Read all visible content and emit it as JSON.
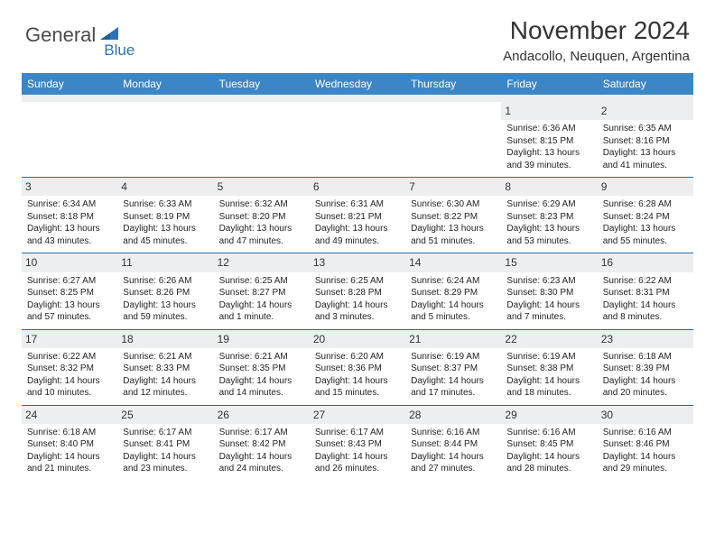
{
  "logo": {
    "text1": "General",
    "text2": "Blue"
  },
  "title": "November 2024",
  "location": "Andacollo, Neuquen, Argentina",
  "colors": {
    "header_bg": "#3b86c6",
    "header_text": "#ffffff",
    "daynum_bg": "#eceef0",
    "rule": "#2a6aa8",
    "logo_gray": "#4a4a4a",
    "logo_blue": "#2a73b8"
  },
  "dow": [
    "Sunday",
    "Monday",
    "Tuesday",
    "Wednesday",
    "Thursday",
    "Friday",
    "Saturday"
  ],
  "weeks": [
    [
      {
        "n": "",
        "sr": "",
        "ss": "",
        "dl": ""
      },
      {
        "n": "",
        "sr": "",
        "ss": "",
        "dl": ""
      },
      {
        "n": "",
        "sr": "",
        "ss": "",
        "dl": ""
      },
      {
        "n": "",
        "sr": "",
        "ss": "",
        "dl": ""
      },
      {
        "n": "",
        "sr": "",
        "ss": "",
        "dl": ""
      },
      {
        "n": "1",
        "sr": "Sunrise: 6:36 AM",
        "ss": "Sunset: 8:15 PM",
        "dl": "Daylight: 13 hours and 39 minutes."
      },
      {
        "n": "2",
        "sr": "Sunrise: 6:35 AM",
        "ss": "Sunset: 8:16 PM",
        "dl": "Daylight: 13 hours and 41 minutes."
      }
    ],
    [
      {
        "n": "3",
        "sr": "Sunrise: 6:34 AM",
        "ss": "Sunset: 8:18 PM",
        "dl": "Daylight: 13 hours and 43 minutes."
      },
      {
        "n": "4",
        "sr": "Sunrise: 6:33 AM",
        "ss": "Sunset: 8:19 PM",
        "dl": "Daylight: 13 hours and 45 minutes."
      },
      {
        "n": "5",
        "sr": "Sunrise: 6:32 AM",
        "ss": "Sunset: 8:20 PM",
        "dl": "Daylight: 13 hours and 47 minutes."
      },
      {
        "n": "6",
        "sr": "Sunrise: 6:31 AM",
        "ss": "Sunset: 8:21 PM",
        "dl": "Daylight: 13 hours and 49 minutes."
      },
      {
        "n": "7",
        "sr": "Sunrise: 6:30 AM",
        "ss": "Sunset: 8:22 PM",
        "dl": "Daylight: 13 hours and 51 minutes."
      },
      {
        "n": "8",
        "sr": "Sunrise: 6:29 AM",
        "ss": "Sunset: 8:23 PM",
        "dl": "Daylight: 13 hours and 53 minutes."
      },
      {
        "n": "9",
        "sr": "Sunrise: 6:28 AM",
        "ss": "Sunset: 8:24 PM",
        "dl": "Daylight: 13 hours and 55 minutes."
      }
    ],
    [
      {
        "n": "10",
        "sr": "Sunrise: 6:27 AM",
        "ss": "Sunset: 8:25 PM",
        "dl": "Daylight: 13 hours and 57 minutes."
      },
      {
        "n": "11",
        "sr": "Sunrise: 6:26 AM",
        "ss": "Sunset: 8:26 PM",
        "dl": "Daylight: 13 hours and 59 minutes."
      },
      {
        "n": "12",
        "sr": "Sunrise: 6:25 AM",
        "ss": "Sunset: 8:27 PM",
        "dl": "Daylight: 14 hours and 1 minute."
      },
      {
        "n": "13",
        "sr": "Sunrise: 6:25 AM",
        "ss": "Sunset: 8:28 PM",
        "dl": "Daylight: 14 hours and 3 minutes."
      },
      {
        "n": "14",
        "sr": "Sunrise: 6:24 AM",
        "ss": "Sunset: 8:29 PM",
        "dl": "Daylight: 14 hours and 5 minutes."
      },
      {
        "n": "15",
        "sr": "Sunrise: 6:23 AM",
        "ss": "Sunset: 8:30 PM",
        "dl": "Daylight: 14 hours and 7 minutes."
      },
      {
        "n": "16",
        "sr": "Sunrise: 6:22 AM",
        "ss": "Sunset: 8:31 PM",
        "dl": "Daylight: 14 hours and 8 minutes."
      }
    ],
    [
      {
        "n": "17",
        "sr": "Sunrise: 6:22 AM",
        "ss": "Sunset: 8:32 PM",
        "dl": "Daylight: 14 hours and 10 minutes."
      },
      {
        "n": "18",
        "sr": "Sunrise: 6:21 AM",
        "ss": "Sunset: 8:33 PM",
        "dl": "Daylight: 14 hours and 12 minutes."
      },
      {
        "n": "19",
        "sr": "Sunrise: 6:21 AM",
        "ss": "Sunset: 8:35 PM",
        "dl": "Daylight: 14 hours and 14 minutes."
      },
      {
        "n": "20",
        "sr": "Sunrise: 6:20 AM",
        "ss": "Sunset: 8:36 PM",
        "dl": "Daylight: 14 hours and 15 minutes."
      },
      {
        "n": "21",
        "sr": "Sunrise: 6:19 AM",
        "ss": "Sunset: 8:37 PM",
        "dl": "Daylight: 14 hours and 17 minutes."
      },
      {
        "n": "22",
        "sr": "Sunrise: 6:19 AM",
        "ss": "Sunset: 8:38 PM",
        "dl": "Daylight: 14 hours and 18 minutes."
      },
      {
        "n": "23",
        "sr": "Sunrise: 6:18 AM",
        "ss": "Sunset: 8:39 PM",
        "dl": "Daylight: 14 hours and 20 minutes."
      }
    ],
    [
      {
        "n": "24",
        "sr": "Sunrise: 6:18 AM",
        "ss": "Sunset: 8:40 PM",
        "dl": "Daylight: 14 hours and 21 minutes."
      },
      {
        "n": "25",
        "sr": "Sunrise: 6:17 AM",
        "ss": "Sunset: 8:41 PM",
        "dl": "Daylight: 14 hours and 23 minutes."
      },
      {
        "n": "26",
        "sr": "Sunrise: 6:17 AM",
        "ss": "Sunset: 8:42 PM",
        "dl": "Daylight: 14 hours and 24 minutes."
      },
      {
        "n": "27",
        "sr": "Sunrise: 6:17 AM",
        "ss": "Sunset: 8:43 PM",
        "dl": "Daylight: 14 hours and 26 minutes."
      },
      {
        "n": "28",
        "sr": "Sunrise: 6:16 AM",
        "ss": "Sunset: 8:44 PM",
        "dl": "Daylight: 14 hours and 27 minutes."
      },
      {
        "n": "29",
        "sr": "Sunrise: 6:16 AM",
        "ss": "Sunset: 8:45 PM",
        "dl": "Daylight: 14 hours and 28 minutes."
      },
      {
        "n": "30",
        "sr": "Sunrise: 6:16 AM",
        "ss": "Sunset: 8:46 PM",
        "dl": "Daylight: 14 hours and 29 minutes."
      }
    ]
  ]
}
